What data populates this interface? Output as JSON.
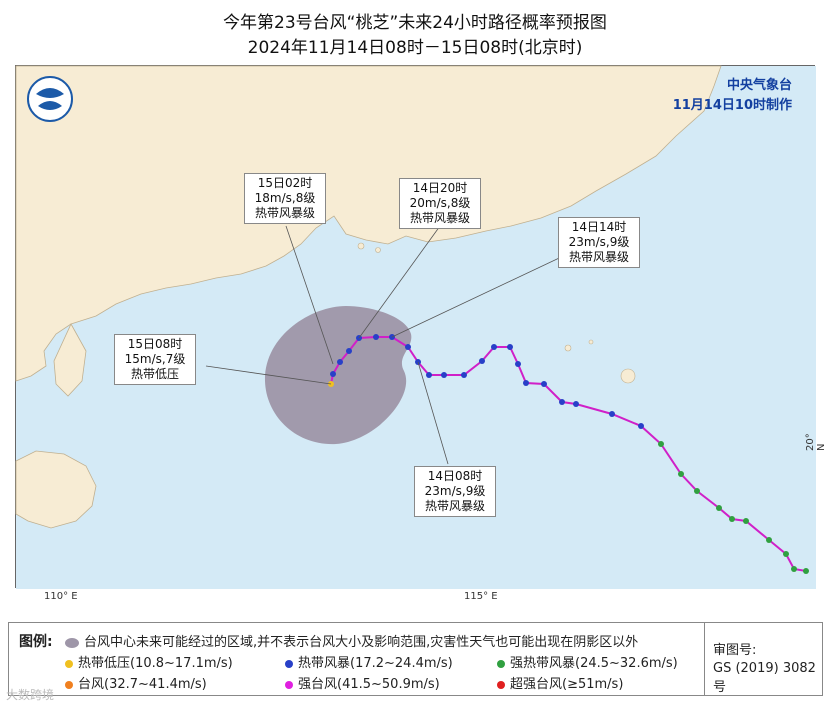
{
  "header": {
    "title": "今年第23号台风“桃芝”未来24小时路径概率预报图",
    "subtitle": "2024年11月14日08时－15日08时(北京时)"
  },
  "agency": {
    "name": "中央气象台",
    "made": "11月14日10时制作"
  },
  "axes": {
    "lon_110": "110° E",
    "lon_115": "115° E",
    "lat_20": "20° N"
  },
  "callouts": [
    {
      "time": "15日02时",
      "wind": "18m/s,8级",
      "grade": "热带风暴级"
    },
    {
      "time": "14日20时",
      "wind": "20m/s,8级",
      "grade": "热带风暴级"
    },
    {
      "time": "14日14时",
      "wind": "23m/s,9级",
      "grade": "热带风暴级"
    },
    {
      "time": "15日08时",
      "wind": "15m/s,7级",
      "grade": "热带低压"
    },
    {
      "time": "14日08时",
      "wind": "23m/s,9级",
      "grade": "热带风暴级"
    }
  ],
  "legend": {
    "title": "图例:",
    "cone": "台风中心未来可能经过的区域,并不表示台风大小及影响范围,灾害性天气也可能出现在阴影区以外",
    "items": [
      {
        "label": "热带低压(10.8~17.1m/s)",
        "color": "#f0c020"
      },
      {
        "label": "热带风暴(17.2~24.4m/s)",
        "color": "#2840c8"
      },
      {
        "label": "强热带风暴(24.5~32.6m/s)",
        "color": "#30a040"
      },
      {
        "label": "台风(32.7~41.4m/s)",
        "color": "#f08020"
      },
      {
        "label": "强台风(41.5~50.9m/s)",
        "color": "#e020e0"
      },
      {
        "label": "超强台风(≥51m/s)",
        "color": "#e02020"
      }
    ],
    "review_label": "审图号:",
    "review_no": "GS (2019) 3082号"
  },
  "watermark": "大数跨境",
  "colors": {
    "sea": "#d4eaf6",
    "land": "#f7ecd4",
    "cone": "#9e96a8",
    "track": "#d020c8"
  }
}
